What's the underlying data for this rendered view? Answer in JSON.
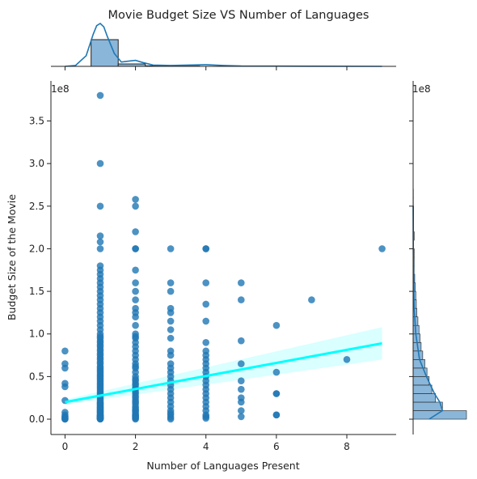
{
  "chart_data": {
    "type": "scatter",
    "title": "Movie Budget Size VS Number of Languages",
    "xlabel": "Number of Languages Present",
    "ylabel": "Budget Size of the Movie",
    "y_multiplier_label": "1e8",
    "right_multiplier_label": "1e8",
    "xlim": [
      -0.4,
      9.4
    ],
    "ylim": [
      -0.18,
      3.97
    ],
    "x_ticks": [
      0,
      2,
      4,
      6,
      8
    ],
    "y_ticks": [
      0.0,
      0.5,
      1.0,
      1.5,
      2.0,
      2.5,
      3.0,
      3.5
    ],
    "y_tick_labels": [
      "0.0",
      "0.5",
      "1.0",
      "1.5",
      "2.0",
      "2.5",
      "3.0",
      "3.5"
    ],
    "top_x_ticks": [
      0,
      20,
      40,
      60,
      80
    ],
    "colors": {
      "points": "#1f77b4",
      "regression_line": "#00ffff",
      "confidence_band": "#ccffff",
      "hist_fill": "#8ab6d9",
      "kde_line": "#1f77b4"
    },
    "series": [
      {
        "x": [
          0,
          0,
          0,
          0,
          0,
          0,
          0,
          0,
          0,
          0,
          0,
          0,
          0
        ],
        "y": [
          0.8,
          0.65,
          0.6,
          0.42,
          0.38,
          0.22,
          0.08,
          0.05,
          0.03,
          0.02,
          0.01,
          0.0,
          0.0
        ]
      },
      {
        "x": [
          1,
          1,
          1,
          1,
          1,
          1,
          1,
          1,
          1,
          1,
          1,
          1,
          1,
          1,
          1,
          1,
          1,
          1,
          1,
          1,
          1,
          1,
          1,
          1,
          1,
          1,
          1,
          1,
          1,
          1,
          1,
          1,
          1,
          1,
          1,
          1,
          1,
          1,
          1,
          1,
          1,
          1,
          1,
          1,
          1,
          1,
          1,
          1,
          1,
          1,
          1,
          1,
          1,
          1,
          1,
          1,
          1,
          1,
          1,
          1,
          1,
          1,
          1,
          1,
          1,
          1,
          1,
          1,
          1,
          1,
          1,
          1,
          1,
          1,
          1,
          1,
          1,
          1,
          1,
          1,
          1,
          1,
          1,
          1,
          1,
          1,
          1
        ],
        "y": [
          3.8,
          3.0,
          2.5,
          2.15,
          2.08,
          2.0,
          1.8,
          1.75,
          1.7,
          1.65,
          1.6,
          1.55,
          1.5,
          1.45,
          1.4,
          1.35,
          1.3,
          1.25,
          1.2,
          1.15,
          1.1,
          1.05,
          1.0,
          0.97,
          0.95,
          0.92,
          0.9,
          0.87,
          0.85,
          0.82,
          0.8,
          0.77,
          0.75,
          0.72,
          0.7,
          0.67,
          0.65,
          0.62,
          0.6,
          0.58,
          0.56,
          0.54,
          0.52,
          0.5,
          0.48,
          0.46,
          0.44,
          0.42,
          0.4,
          0.38,
          0.36,
          0.34,
          0.32,
          0.3,
          0.28,
          0.26,
          0.24,
          0.22,
          0.2,
          0.19,
          0.18,
          0.17,
          0.16,
          0.15,
          0.14,
          0.13,
          0.12,
          0.11,
          0.1,
          0.09,
          0.08,
          0.07,
          0.06,
          0.05,
          0.045,
          0.04,
          0.035,
          0.03,
          0.025,
          0.02,
          0.015,
          0.012,
          0.01,
          0.007,
          0.005,
          0.003,
          0.0
        ]
      },
      {
        "x": [
          2,
          2,
          2,
          2,
          2,
          2,
          2,
          2,
          2,
          2,
          2,
          2,
          2,
          2,
          2,
          2,
          2,
          2,
          2,
          2,
          2,
          2,
          2,
          2,
          2,
          2,
          2,
          2,
          2,
          2,
          2,
          2,
          2,
          2,
          2,
          2,
          2,
          2,
          2,
          2,
          2,
          2,
          2,
          2,
          2,
          2,
          2,
          2,
          2,
          2,
          2
        ],
        "y": [
          2.58,
          2.5,
          2.2,
          2.0,
          2.0,
          1.75,
          1.6,
          1.5,
          1.4,
          1.3,
          1.25,
          1.2,
          1.1,
          1.0,
          0.97,
          0.95,
          0.9,
          0.85,
          0.8,
          0.75,
          0.7,
          0.65,
          0.62,
          0.6,
          0.55,
          0.5,
          0.47,
          0.45,
          0.42,
          0.4,
          0.37,
          0.35,
          0.32,
          0.3,
          0.27,
          0.25,
          0.22,
          0.2,
          0.18,
          0.15,
          0.13,
          0.11,
          0.1,
          0.08,
          0.06,
          0.05,
          0.04,
          0.03,
          0.02,
          0.01,
          0.0
        ]
      },
      {
        "x": [
          3,
          3,
          3,
          3,
          3,
          3,
          3,
          3,
          3,
          3,
          3,
          3,
          3,
          3,
          3,
          3,
          3,
          3,
          3,
          3,
          3,
          3,
          3,
          3,
          3,
          3
        ],
        "y": [
          2.0,
          1.6,
          1.5,
          1.3,
          1.25,
          1.15,
          1.05,
          0.95,
          0.8,
          0.75,
          0.65,
          0.6,
          0.55,
          0.5,
          0.45,
          0.4,
          0.35,
          0.3,
          0.25,
          0.2,
          0.15,
          0.1,
          0.07,
          0.05,
          0.02,
          0.0
        ]
      },
      {
        "x": [
          4,
          4,
          4,
          4,
          4,
          4,
          4,
          4,
          4,
          4,
          4,
          4,
          4,
          4,
          4,
          4,
          4,
          4,
          4,
          4,
          4,
          4,
          4,
          4
        ],
        "y": [
          2.0,
          2.0,
          1.6,
          1.35,
          1.15,
          0.9,
          0.8,
          0.75,
          0.7,
          0.65,
          0.6,
          0.55,
          0.5,
          0.45,
          0.4,
          0.35,
          0.3,
          0.25,
          0.2,
          0.15,
          0.1,
          0.05,
          0.03,
          0.01
        ]
      },
      {
        "x": [
          5,
          5,
          5,
          5,
          5,
          5,
          5,
          5,
          5,
          5
        ],
        "y": [
          1.6,
          1.4,
          0.92,
          0.65,
          0.45,
          0.35,
          0.25,
          0.2,
          0.1,
          0.03
        ]
      },
      {
        "x": [
          6,
          6,
          6,
          6,
          6,
          6
        ],
        "y": [
          1.1,
          0.55,
          0.3,
          0.3,
          0.05,
          0.05
        ]
      },
      {
        "x": [
          7
        ],
        "y": [
          1.4
        ]
      },
      {
        "x": [
          8
        ],
        "y": [
          0.7
        ]
      },
      {
        "x": [
          9
        ],
        "y": [
          2.0
        ]
      }
    ],
    "regression": {
      "x": [
        0,
        9
      ],
      "y": [
        0.2,
        0.89
      ],
      "ci_upper": [
        0.23,
        1.08
      ],
      "ci_lower": [
        0.17,
        0.7
      ]
    },
    "top_histogram": {
      "bins": [
        {
          "x0": 7.4,
          "x1": 15.1,
          "count": 1.0
        },
        {
          "x0": 15.1,
          "x1": 22.8,
          "count": 0.09
        },
        {
          "x0": 22.8,
          "x1": 30.5,
          "count": 0.02
        },
        {
          "x0": 30.5,
          "x1": 38.2,
          "count": 0.01
        }
      ],
      "kde": [
        [
          0,
          0.0
        ],
        [
          3,
          0.02
        ],
        [
          6,
          0.25
        ],
        [
          8,
          0.75
        ],
        [
          9,
          0.95
        ],
        [
          10,
          1.0
        ],
        [
          11,
          0.92
        ],
        [
          12,
          0.7
        ],
        [
          14,
          0.3
        ],
        [
          16,
          0.1
        ],
        [
          18,
          0.12
        ],
        [
          20,
          0.14
        ],
        [
          22,
          0.09
        ],
        [
          25,
          0.03
        ],
        [
          30,
          0.02
        ],
        [
          35,
          0.03
        ],
        [
          40,
          0.04
        ],
        [
          45,
          0.02
        ],
        [
          50,
          0.01
        ],
        [
          60,
          0.005
        ],
        [
          70,
          0.003
        ],
        [
          90,
          0.0
        ]
      ]
    },
    "right_histogram": {
      "counts": [
        1.0,
        0.55,
        0.42,
        0.35,
        0.3,
        0.26,
        0.22,
        0.18,
        0.15,
        0.13,
        0.11,
        0.09,
        0.07,
        0.06,
        0.05,
        0.04,
        0.03,
        0.02,
        0.02,
        0.02,
        0.01,
        0.02,
        0.01,
        0.01,
        0.01,
        0.005,
        0.005
      ],
      "bin_width": 0.1,
      "y_start": 0.0,
      "kde": [
        [
          0.0,
          0.3
        ],
        [
          0.1,
          0.55
        ],
        [
          0.2,
          0.5
        ],
        [
          0.3,
          0.4
        ],
        [
          0.5,
          0.25
        ],
        [
          0.7,
          0.12
        ],
        [
          1.0,
          0.05
        ],
        [
          1.3,
          0.02
        ],
        [
          1.6,
          0.01
        ],
        [
          2.0,
          0.003
        ],
        [
          2.5,
          0.0
        ]
      ]
    }
  }
}
